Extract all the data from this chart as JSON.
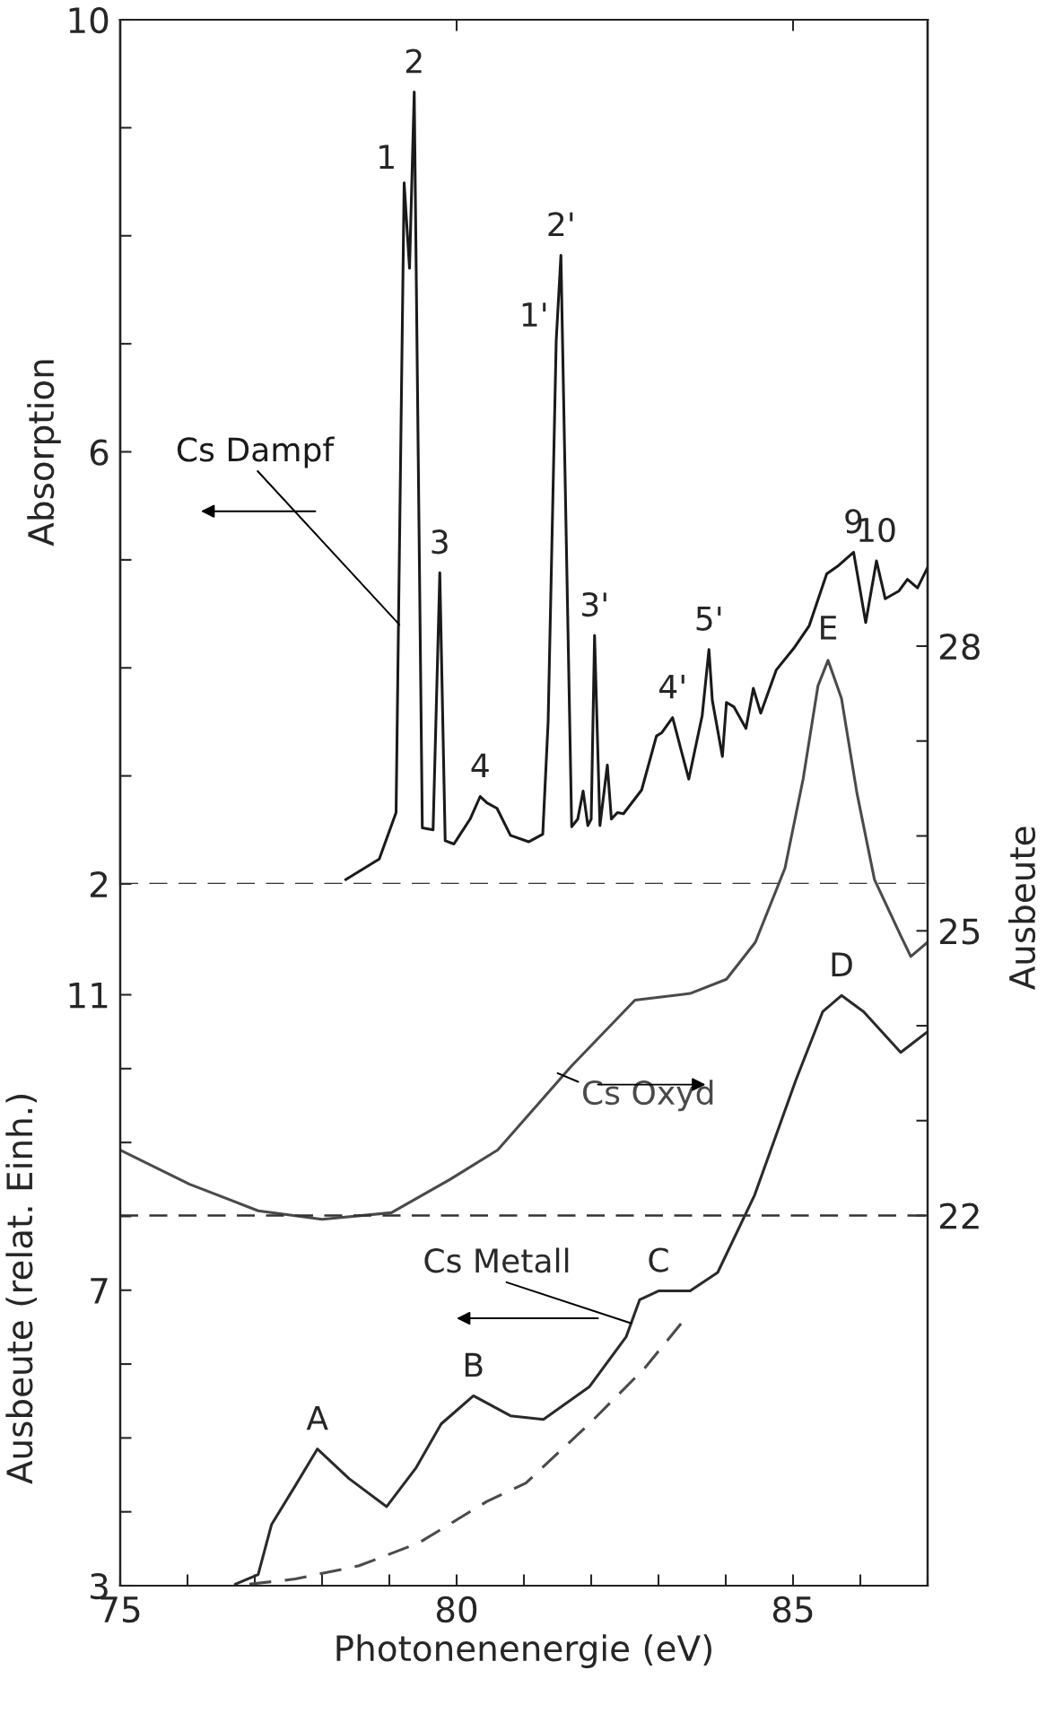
{
  "chart_data": [
    {
      "type": "line",
      "ylabel": "Absorption",
      "xlim": [
        75,
        87
      ],
      "xticks": [
        {
          "value": 80,
          "label": null
        },
        {
          "value": 85,
          "label": null
        }
      ],
      "ylim": [
        2,
        10
      ],
      "yticks": [
        2,
        {
          "value": 3,
          "label": null
        },
        {
          "value": 4,
          "label": null
        },
        {
          "value": 5,
          "label": null
        },
        6,
        {
          "value": 7,
          "label": null
        },
        {
          "value": 8,
          "label": null
        },
        {
          "value": 9,
          "label": null
        },
        10
      ],
      "tick_labels": "y",
      "grid": false,
      "legend": false,
      "series": [
        {
          "name": "Cs Dampf",
          "color": "#1a1a1a",
          "x": [
            78.35,
            78.85,
            79.1,
            79.22,
            79.3,
            79.37,
            79.49,
            79.65,
            79.75,
            79.83,
            79.96,
            80.2,
            80.35,
            80.45,
            80.6,
            80.8,
            81.07,
            81.28,
            81.36,
            81.48,
            81.55,
            81.71,
            81.8,
            81.88,
            81.95,
            82.0,
            82.05,
            82.13,
            82.24,
            82.3,
            82.39,
            82.48,
            82.75,
            82.97,
            83.05,
            83.21,
            83.45,
            83.65,
            83.75,
            83.8,
            83.95,
            84.01,
            84.12,
            84.3,
            84.41,
            84.52,
            84.75,
            85.01,
            85.24,
            85.5,
            85.68,
            85.9,
            86.08,
            86.24,
            86.37,
            86.57,
            86.7,
            86.85,
            87.0
          ],
          "values": [
            2.04,
            2.23,
            2.66,
            8.49,
            7.7,
            9.33,
            2.52,
            2.5,
            4.88,
            2.4,
            2.37,
            2.6,
            2.81,
            2.75,
            2.7,
            2.45,
            2.39,
            2.46,
            3.5,
            7.03,
            7.82,
            2.53,
            2.6,
            2.86,
            2.54,
            2.6,
            4.3,
            2.54,
            3.1,
            2.6,
            2.66,
            2.65,
            2.87,
            3.37,
            3.4,
            3.54,
            2.97,
            3.56,
            4.17,
            3.7,
            3.18,
            3.68,
            3.64,
            3.44,
            3.81,
            3.58,
            3.98,
            4.18,
            4.39,
            4.87,
            4.95,
            5.07,
            4.42,
            4.99,
            4.64,
            4.71,
            4.82,
            4.74,
            4.93
          ]
        }
      ],
      "ref_lines": [
        {
          "axis": "y",
          "value": 2,
          "line_style": "dashed",
          "color": "#333333"
        }
      ],
      "annotations": [
        {
          "text": "1",
          "x": 79.22,
          "y": 8.49
        },
        {
          "text": "2",
          "x": 79.37,
          "y": 9.33
        },
        {
          "text": "3",
          "x": 79.75,
          "y": 4.88
        },
        {
          "text": "4",
          "x": 80.35,
          "y": 2.81
        },
        {
          "text": "1'",
          "x": 81.48,
          "y": 7.03
        },
        {
          "text": "2'",
          "x": 81.55,
          "y": 7.82
        },
        {
          "text": "3'",
          "x": 82.05,
          "y": 4.3
        },
        {
          "text": "4'",
          "x": 83.21,
          "y": 3.54
        },
        {
          "text": "5'",
          "x": 83.75,
          "y": 4.17
        },
        {
          "text": "9",
          "x": 85.9,
          "y": 5.07
        },
        {
          "text": "10",
          "x": 86.24,
          "y": 4.99
        }
      ]
    },
    {
      "type": "line",
      "xlabel": "Photonenenergie (eV)",
      "ylabel": "Ausbeute (relat. Einh.)",
      "y2label": "Ausbeute",
      "xlim": [
        75,
        87
      ],
      "xticks": [
        75,
        {
          "value": 76,
          "label": null
        },
        {
          "value": 77,
          "label": null
        },
        {
          "value": 78,
          "label": null
        },
        {
          "value": 79,
          "label": null
        },
        80,
        {
          "value": 81,
          "label": null
        },
        {
          "value": 82,
          "label": null
        },
        {
          "value": 83,
          "label": null
        },
        {
          "value": 84,
          "label": null
        },
        85,
        {
          "value": 86,
          "label": null
        },
        {
          "value": 87,
          "label": null
        }
      ],
      "ylim": [
        3,
        24.2
      ],
      "yticks": [
        3,
        {
          "value": 4,
          "label": null
        },
        {
          "value": 5,
          "label": null
        },
        {
          "value": 6,
          "label": null
        },
        7,
        {
          "value": 8,
          "label": null
        },
        {
          "value": 9,
          "label": null
        },
        {
          "value": 10,
          "label": null
        },
        11
      ],
      "y2lim": [
        18.1,
        34.6
      ],
      "y2ticks": [
        22,
        {
          "value": 23,
          "label": null
        },
        {
          "value": 24,
          "label": null
        },
        25,
        {
          "value": 26,
          "label": null
        },
        {
          "value": 27,
          "label": null
        },
        28
      ],
      "grid": false,
      "legend": false,
      "series": [
        {
          "name": "Cs Metall",
          "color": "#2a2a2a",
          "x": [
            76.71,
            77.05,
            77.25,
            77.6,
            77.93,
            78.4,
            78.96,
            79.4,
            79.77,
            80.25,
            80.8,
            81.29,
            81.97,
            82.52,
            82.72,
            83.0,
            83.47,
            83.88,
            84.43,
            85.04,
            85.44,
            85.72,
            86.05,
            86.6,
            87.0
          ],
          "values": [
            3.02,
            3.15,
            3.83,
            4.35,
            4.85,
            4.45,
            4.07,
            4.6,
            5.19,
            5.57,
            5.3,
            5.25,
            5.69,
            6.37,
            6.87,
            6.99,
            6.99,
            7.24,
            8.29,
            9.84,
            10.77,
            10.99,
            10.77,
            10.22,
            10.5
          ]
        },
        {
          "color": "#4a4a4a",
          "line_style": "dashed",
          "x": [
            76.92,
            77.6,
            78.55,
            79.44,
            80.45,
            81.03,
            81.97,
            82.79,
            83.4
          ],
          "values": [
            3.02,
            3.09,
            3.27,
            3.58,
            4.14,
            4.39,
            5.19,
            5.94,
            6.62
          ]
        },
        {
          "name": "Cs Oxyd",
          "color": "#4a4a4a",
          "axis": "y2",
          "x": [
            75.0,
            76.03,
            77.05,
            78.0,
            79.03,
            79.9,
            80.61,
            81.7,
            82.65,
            83.47,
            84.01,
            84.44,
            84.88,
            85.15,
            85.37,
            85.52,
            85.72,
            85.95,
            86.21,
            86.6,
            86.75,
            87.0
          ],
          "values": [
            22.69,
            22.33,
            22.05,
            21.96,
            22.03,
            22.38,
            22.69,
            23.57,
            24.27,
            24.34,
            24.49,
            24.88,
            25.66,
            26.6,
            27.58,
            27.85,
            27.45,
            26.45,
            25.54,
            24.95,
            24.73,
            24.88
          ]
        }
      ],
      "ref_lines": [
        {
          "axis": "y2",
          "value": 22,
          "line_style": "dashed",
          "color": "#333333"
        }
      ],
      "annotations": [
        {
          "text": "A",
          "x": 77.93,
          "y": 4.85
        },
        {
          "text": "B",
          "x": 80.25,
          "y": 5.57
        },
        {
          "text": "C",
          "x": 83.0,
          "y": 6.99
        },
        {
          "text": "D",
          "x": 85.72,
          "y": 10.99
        },
        {
          "text": "E",
          "x": 85.52,
          "y": 15.55
        }
      ]
    }
  ]
}
